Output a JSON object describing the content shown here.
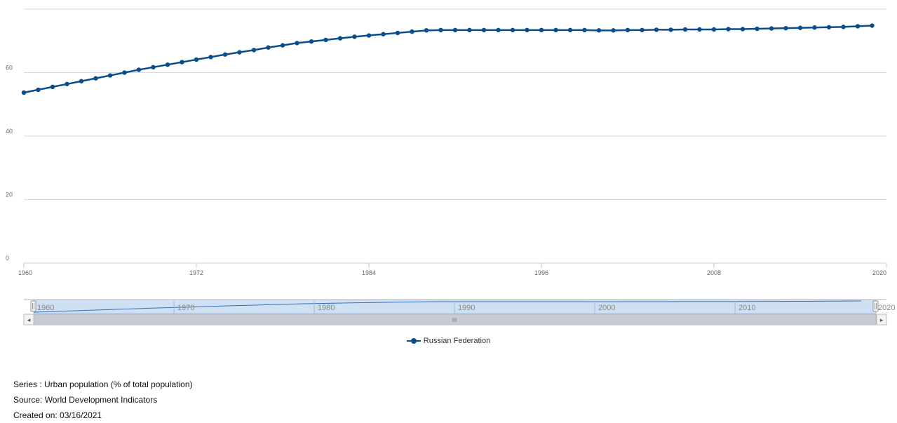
{
  "chart_data": {
    "type": "line",
    "x_ticks": [
      "1960",
      "1972",
      "1984",
      "1996",
      "2008",
      "2020"
    ],
    "y_ticks": [
      "0",
      "20",
      "40",
      "60"
    ],
    "ylim": [
      0,
      80
    ],
    "xlim": [
      1960,
      2020
    ],
    "grid": true,
    "legend_position": "bottom",
    "series": [
      {
        "name": "Russian Federation",
        "color": "#0a4d8c",
        "x": [
          1960,
          1961,
          1962,
          1963,
          1964,
          1965,
          1966,
          1967,
          1968,
          1969,
          1970,
          1971,
          1972,
          1973,
          1974,
          1975,
          1976,
          1977,
          1978,
          1979,
          1980,
          1981,
          1982,
          1983,
          1984,
          1985,
          1986,
          1987,
          1988,
          1989,
          1990,
          1991,
          1992,
          1993,
          1994,
          1995,
          1996,
          1997,
          1998,
          1999,
          2000,
          2001,
          2002,
          2003,
          2004,
          2005,
          2006,
          2007,
          2008,
          2009,
          2010,
          2011,
          2012,
          2013,
          2014,
          2015,
          2016,
          2017,
          2018,
          2019
        ],
        "values": [
          53.7,
          54.6,
          55.5,
          56.4,
          57.3,
          58.2,
          59.1,
          60.0,
          60.9,
          61.7,
          62.5,
          63.3,
          64.1,
          64.9,
          65.7,
          66.4,
          67.1,
          67.9,
          68.6,
          69.3,
          69.8,
          70.3,
          70.8,
          71.3,
          71.7,
          72.1,
          72.5,
          72.9,
          73.3,
          73.4,
          73.4,
          73.4,
          73.4,
          73.4,
          73.4,
          73.4,
          73.4,
          73.4,
          73.4,
          73.4,
          73.3,
          73.3,
          73.4,
          73.4,
          73.5,
          73.5,
          73.6,
          73.6,
          73.6,
          73.7,
          73.7,
          73.8,
          73.9,
          74.0,
          74.1,
          74.2,
          74.3,
          74.4,
          74.6,
          74.8
        ]
      }
    ]
  },
  "navigator": {
    "labels": [
      "1960",
      "1970",
      "1980",
      "1990",
      "2000",
      "2010",
      "2020"
    ],
    "scroll_grip": "III",
    "left_arrow": "◂",
    "right_arrow": "▸"
  },
  "legend": {
    "label": "Russian Federation"
  },
  "footer": {
    "series": "Series : Urban population (% of total population)",
    "source": "Source: World Development Indicators",
    "created": "Created on: 03/16/2021"
  }
}
